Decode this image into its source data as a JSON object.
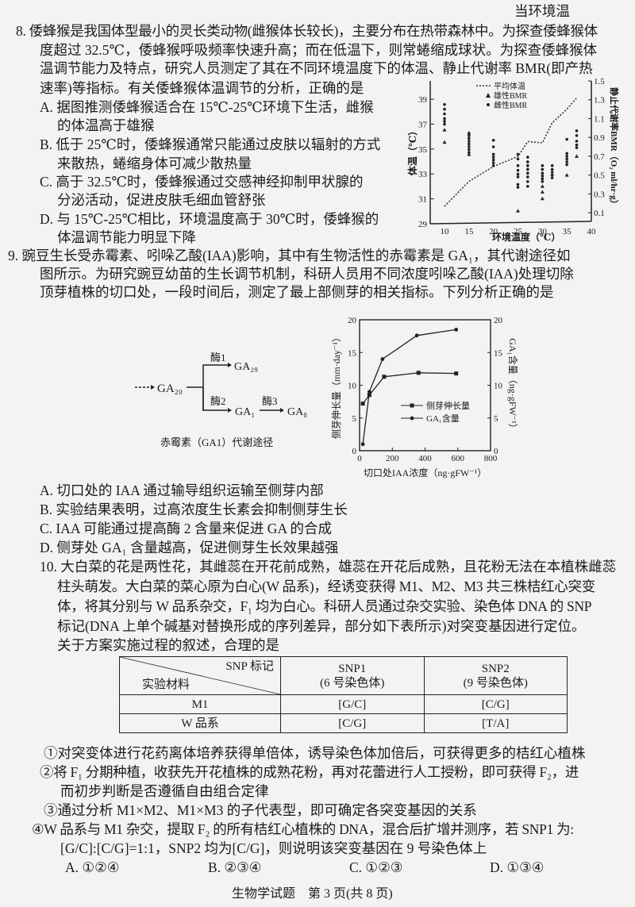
{
  "q8": {
    "lines": [
      "当环境温",
      "8. 倭蜂猴是我国体型最小的灵长类动物(雌猴体长较长)，主要分布在热带森林中。为探查倭蜂猴体",
      "度超过 32.5℃，倭蜂猴呼吸频率快速升高；而在低温下，则常蜷缩成球状。为探查倭蜂猴体",
      "温调节能力及特点，研究人员测定了其在不同环境温度下的体温、静止代谢率 BMR(即产热",
      "速率)等指标。有关倭蜂猴体温调节的分析，正确的是"
    ],
    "options": [
      [
        "A. 据图推测倭蜂猴适合在 15℃-25℃环境下生活，雌猴",
        "的体温高于雄猴"
      ],
      [
        "B. 低于 25℃时，倭蜂猴通常只能通过皮肤以辐射的方式",
        "来散热，蜷缩身体可减少散热量"
      ],
      [
        "C. 高于 32.5℃时，倭蜂猴通过交感神经抑制甲状腺的",
        "分泌活动，促进皮肤毛细血管舒张"
      ],
      [
        "D. 与 15℃-25℃相比，环境温度高于 30℃时，倭蜂猴的",
        "体温调节能力明显下降"
      ]
    ]
  },
  "q9": {
    "lines": [
      "9. 豌豆生长受赤霉素、吲哚乙酸(IAA)影响，其中有生物活性的赤霉素是 GA₁，其代谢途径如",
      "图所示。为研究豌豆幼苗的生长调节机制，科研人员用不同浓度吲哚乙酸(IAA)处理切除",
      "顶芽植株的切口处，一段时间后，测定了最上部侧芽的相关指标。下列分析正确的是"
    ],
    "pathway": {
      "source": "GA₂₀",
      "enzyme1": "酶1",
      "product1": "GA₂₉",
      "enzyme2": "酶2",
      "product2": "GA₁",
      "enzyme3": "酶3",
      "product3": "GA₈",
      "caption": "赤霉素（GA1）代谢途径"
    },
    "options": [
      "A. 切口处的 IAA 通过输导组织运输至侧芽内部",
      "B. 实验结果表明，过高浓度生长素会抑制侧芽生长",
      "C. IAA 可能通过提高酶 2 含量来促进 GA 的合成",
      "D. 侧芽处 GA₁ 含量越高，促进侧芽生长效果越强"
    ]
  },
  "q10": {
    "lines": [
      "10. 大白菜的花是两性花，其雌蕊在开花前成熟，雄蕊在开花后成熟，且花粉无法在本植株雌蕊",
      "柱头萌发。大白菜的菜心原为白心(W 品系)，经诱变获得 M1、M2、M3 共三株桔红心突变",
      "体，将其分别与 W 品系杂交，F₁ 均为白心。科研人员通过杂交实验、染色体 DNA 的 SNP",
      "标记(DNA 上单个碱基对替换形成的序列差异，部分如下表所示)对突变基因进行定位。",
      "关于方案实施过程的叙述，合理的是"
    ],
    "table": {
      "corner_top": "SNP 标记",
      "corner_bottom": "实验材料",
      "columns": [
        {
          "name": "SNP1",
          "sub": "(6 号染色体)"
        },
        {
          "name": "SNP2",
          "sub": "(9 号染色体)"
        }
      ],
      "rows": [
        {
          "label": "M1",
          "cells": [
            "[G/C]",
            "[C/G]"
          ]
        },
        {
          "label": "W 品系",
          "cells": [
            "[C/G]",
            "[T/A]"
          ]
        }
      ]
    },
    "statements": [
      [
        "①对突变体进行花药离体培养获得单倍体，诱导染色体加倍后，可获得更多的桔红心植株"
      ],
      [
        "②将 F₁ 分期种植，收获先开花植株的成熟花粉，再对花蕾进行人工授粉，即可获得 F₂，进",
        "而初步判断是否遵循自由组合定律"
      ],
      [
        "③通过分析 M1×M2、M1×M3 的子代表型，即可确定各突变基因的关系"
      ],
      [
        "④W 品系与 M1 杂交，提取 F₂ 的所有桔红心植株的 DNA，混合后扩增并测序，若 SNP1 为:",
        "[G/C]:[C/G]=1:1，SNP2 均为[C/G]，则说明该突变基因在 9 号染色体上"
      ]
    ],
    "answers": [
      "A. ①②④",
      "B. ②③④",
      "C. ①②③",
      "D. ①③④"
    ]
  },
  "footer": "生物学试题　第 3 页(共 8 页)",
  "chart_data": [
    {
      "type": "scatter",
      "xlabel": "环境温度（℃）",
      "ylabel": "体温（℃）",
      "y2label": "静止代谢率BMR（O₂ ml/hr·g）",
      "xticks": [
        10,
        15,
        20,
        25,
        30,
        35,
        40
      ],
      "yticks": [
        29,
        31,
        33,
        35,
        37,
        39
      ],
      "y2ticks": [
        0.1,
        0.3,
        0.5,
        0.7,
        0.9,
        1.1,
        1.3,
        1.5
      ],
      "xlim": [
        7,
        40
      ],
      "ylim": [
        29,
        40
      ],
      "y2lim": [
        0.1,
        1.5
      ],
      "series": [
        {
          "name": "平均体温",
          "kind": "dotted-line",
          "axis": "left",
          "points": [
            [
              10,
              30.4
            ],
            [
              15,
              32.4
            ],
            [
              20,
              33.6
            ],
            [
              25,
              34.4
            ],
            [
              27,
              35.6
            ],
            [
              30,
              35.5
            ],
            [
              32,
              37.1
            ],
            [
              35,
              38.2
            ],
            [
              37,
              39.1
            ]
          ]
        },
        {
          "name": "雄性BMR",
          "kind": "triangle",
          "axis": "right",
          "points": [
            [
              10,
              0.98
            ],
            [
              10,
              0.85
            ],
            [
              15,
              0.95
            ],
            [
              15,
              0.72
            ],
            [
              25,
              0.12
            ],
            [
              30,
              0.38
            ],
            [
              30,
              0.32
            ],
            [
              30,
              0.25
            ],
            [
              35,
              0.5
            ],
            [
              37,
              0.7
            ]
          ]
        },
        {
          "name": "雌性BMR",
          "kind": "circle",
          "axis": "right",
          "points": [
            [
              10,
              1.25
            ],
            [
              10,
              1.2
            ],
            [
              10,
              1.15
            ],
            [
              10,
              1.1
            ],
            [
              10,
              1.07
            ],
            [
              10,
              1.04
            ],
            [
              15,
              0.92
            ],
            [
              15,
              0.89
            ],
            [
              15,
              0.86
            ],
            [
              15,
              0.83
            ],
            [
              15,
              0.8
            ],
            [
              15,
              0.77
            ],
            [
              15,
              0.74
            ],
            [
              20,
              0.87
            ],
            [
              20,
              0.8
            ],
            [
              20,
              0.72
            ],
            [
              20,
              0.69
            ],
            [
              20,
              0.66
            ],
            [
              20,
              0.63
            ],
            [
              20,
              0.6
            ],
            [
              25,
              0.72
            ],
            [
              25,
              0.67
            ],
            [
              25,
              0.6
            ],
            [
              25,
              0.55
            ],
            [
              25,
              0.51
            ],
            [
              25,
              0.48
            ],
            [
              25,
              0.4
            ],
            [
              25,
              0.37
            ],
            [
              27,
              0.69
            ],
            [
              27,
              0.64
            ],
            [
              27,
              0.6
            ],
            [
              27,
              0.56
            ],
            [
              27,
              0.52
            ],
            [
              27,
              0.48
            ],
            [
              27,
              0.43
            ],
            [
              27,
              0.38
            ],
            [
              30,
              0.6
            ],
            [
              30,
              0.56
            ],
            [
              30,
              0.52
            ],
            [
              30,
              0.49
            ],
            [
              30,
              0.46
            ],
            [
              30,
              0.43
            ],
            [
              32,
              0.6
            ],
            [
              32,
              0.56
            ],
            [
              32,
              0.53
            ],
            [
              32,
              0.5
            ],
            [
              32,
              0.47
            ],
            [
              35,
              0.88
            ],
            [
              35,
              0.73
            ],
            [
              35,
              0.7
            ],
            [
              35,
              0.67
            ],
            [
              35,
              0.64
            ],
            [
              35,
              0.61
            ],
            [
              37,
              0.97
            ],
            [
              37,
              0.92
            ],
            [
              37,
              0.86
            ],
            [
              37,
              0.82
            ],
            [
              37,
              0.79
            ]
          ]
        }
      ]
    },
    {
      "type": "line",
      "xlabel": "切口处IAA浓度（ng·gFW⁻¹）",
      "ylabel": "侧芽伸长量（mm·day⁻¹）",
      "y2label": "GA₁含量（ng·gFW⁻¹）",
      "xticks": [
        0,
        200,
        400,
        600,
        800
      ],
      "yticks": [
        0,
        5,
        10,
        15,
        20
      ],
      "y2ticks": [
        0,
        5,
        10,
        15,
        20
      ],
      "xlim": [
        0,
        800
      ],
      "ylim": [
        0,
        20
      ],
      "y2lim": [
        0,
        20
      ],
      "legend": "center-right",
      "series": [
        {
          "name": "侧芽伸长量",
          "marker": "square",
          "axis": "left",
          "x": [
            20,
            60,
            150,
            360,
            590
          ],
          "y": [
            7.2,
            8.5,
            11.3,
            11.9,
            11.8
          ]
        },
        {
          "name": "GA₁含量",
          "marker": "circle",
          "axis": "right",
          "x": [
            20,
            60,
            140,
            350,
            590
          ],
          "y": [
            1.0,
            9.0,
            14.0,
            17.6,
            18.5
          ]
        }
      ]
    }
  ]
}
